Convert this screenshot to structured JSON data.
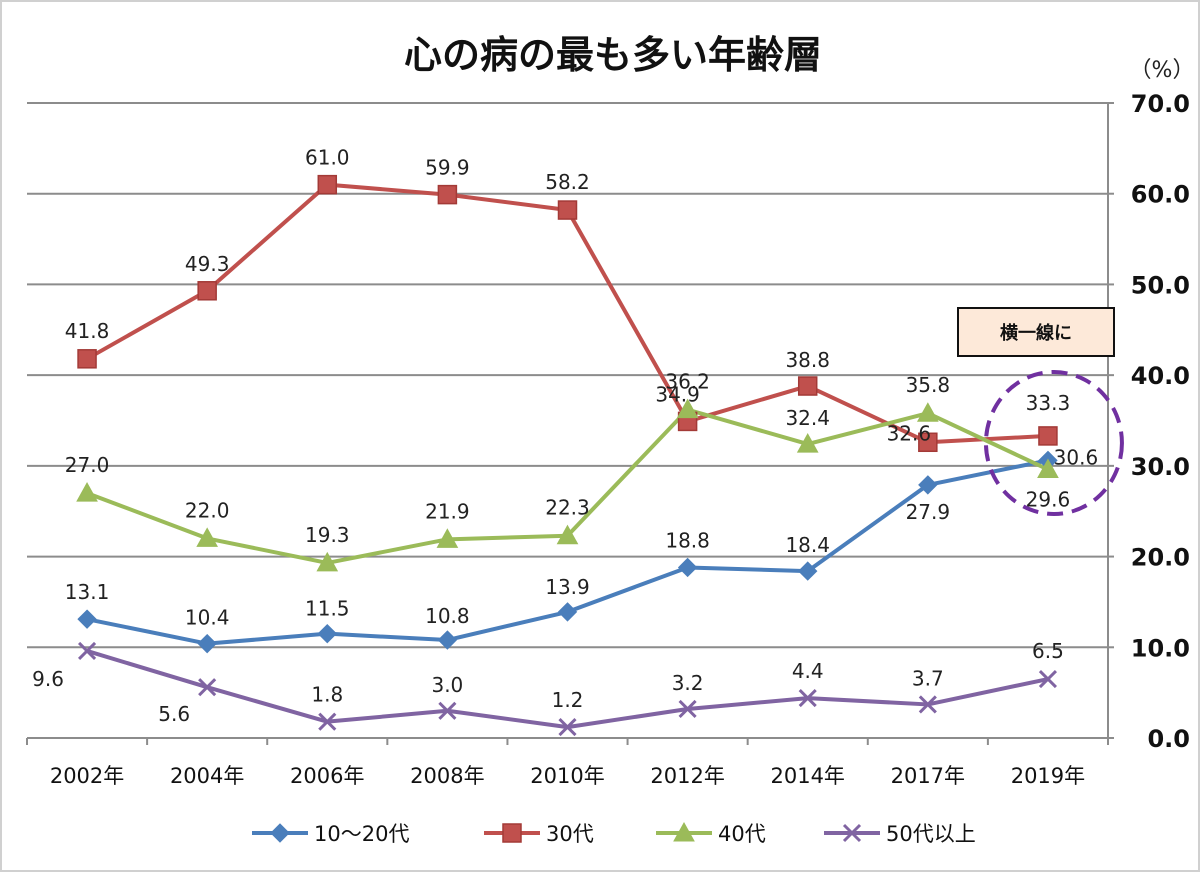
{
  "chart_data": {
    "type": "line",
    "title": "心の病の最も多い年齢層",
    "unit_label": "（%）",
    "categories": [
      "2002年",
      "2004年",
      "2006年",
      "2008年",
      "2010年",
      "2012年",
      "2014年",
      "2017年",
      "2019年"
    ],
    "ylim": [
      0,
      70
    ],
    "yticks": [
      "0.0",
      "10.0",
      "20.0",
      "30.0",
      "40.0",
      "50.0",
      "60.0",
      "70.0"
    ],
    "grid": true,
    "legend_position": "bottom",
    "series": [
      {
        "name": "10〜20代",
        "color": "#4a7ebb",
        "marker": "diamond",
        "values": [
          13.1,
          10.4,
          11.5,
          10.8,
          13.9,
          18.8,
          18.4,
          27.9,
          30.6
        ],
        "labels": [
          "13.1",
          "10.4",
          "11.5",
          "10.8",
          "13.9",
          "18.8",
          "18.4",
          "27.9",
          "30.6"
        ]
      },
      {
        "name": "30代",
        "color": "#c0504d",
        "marker": "square",
        "values": [
          41.8,
          49.3,
          61.0,
          59.9,
          58.2,
          34.9,
          38.8,
          32.6,
          33.3
        ],
        "labels": [
          "41.8",
          "49.3",
          "61.0",
          "59.9",
          "58.2",
          "34.9",
          "38.8",
          "32.6",
          "33.3"
        ]
      },
      {
        "name": "40代",
        "color": "#9bbb59",
        "marker": "triangle",
        "values": [
          27.0,
          22.0,
          19.3,
          21.9,
          22.3,
          36.2,
          32.4,
          35.8,
          29.6
        ],
        "labels": [
          "27.0",
          "22.0",
          "19.3",
          "21.9",
          "22.3",
          "36.2",
          "32.4",
          "35.8",
          "29.6"
        ]
      },
      {
        "name": "50代以上",
        "color": "#8064a2",
        "marker": "x",
        "values": [
          9.6,
          5.6,
          1.8,
          3.0,
          1.2,
          3.2,
          4.4,
          3.7,
          6.5
        ],
        "labels": [
          "9.6",
          "5.6",
          "1.8",
          "3.0",
          "1.2",
          "3.2",
          "4.4",
          "3.7",
          "6.5"
        ]
      }
    ],
    "annotation": {
      "text": "横一線に",
      "highlight_category": "2019年",
      "circle_color": "#7030a0",
      "box_fill": "#fde9d9"
    }
  }
}
